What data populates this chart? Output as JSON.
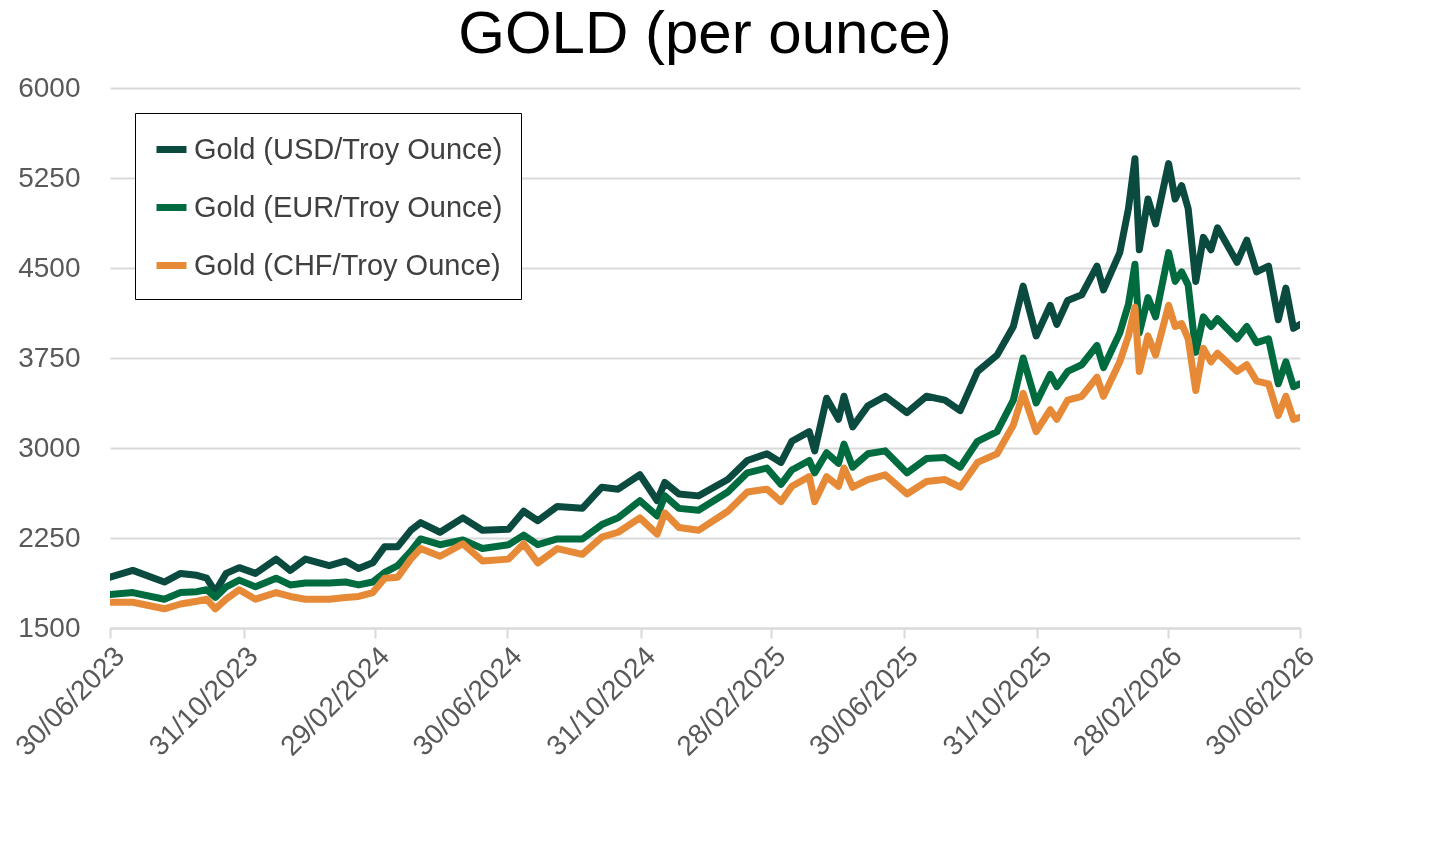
{
  "chart_data": {
    "type": "line",
    "title": "GOLD (per ounce)",
    "x": [
      "2023-06-30",
      "2023-07-21",
      "2023-08-19",
      "2023-09-03",
      "2023-09-18",
      "2023-09-27",
      "2023-10-05",
      "2023-10-15",
      "2023-10-27",
      "2023-11-11",
      "2023-11-30",
      "2023-12-13",
      "2023-12-27",
      "2024-01-18",
      "2024-02-02",
      "2024-02-14",
      "2024-02-27",
      "2024-03-09",
      "2024-03-21",
      "2024-04-02",
      "2024-04-11",
      "2024-04-29",
      "2024-05-20",
      "2024-06-07",
      "2024-07-01",
      "2024-07-15",
      "2024-07-28",
      "2024-08-15",
      "2024-09-07",
      "2024-09-25",
      "2024-10-10",
      "2024-10-30",
      "2024-11-15",
      "2024-11-22",
      "2024-12-05",
      "2024-12-23",
      "2025-01-19",
      "2025-02-06",
      "2025-02-24",
      "2025-03-09",
      "2025-03-19",
      "2025-04-04",
      "2025-04-09",
      "2025-04-20",
      "2025-05-01",
      "2025-05-06",
      "2025-05-14",
      "2025-05-28",
      "2025-06-13",
      "2025-07-03",
      "2025-07-21",
      "2025-08-07",
      "2025-08-21",
      "2025-09-06",
      "2025-09-24",
      "2025-10-09",
      "2025-10-18",
      "2025-10-30",
      "2025-11-12",
      "2025-11-18",
      "2025-11-28",
      "2025-12-11",
      "2025-12-25",
      "2025-12-31",
      "2026-01-15",
      "2026-01-23",
      "2026-01-29",
      "2026-02-02",
      "2026-02-10",
      "2026-02-17",
      "2026-03-01",
      "2026-03-07",
      "2026-03-13",
      "2026-03-19",
      "2026-03-26",
      "2026-04-02",
      "2026-04-09",
      "2026-04-15",
      "2026-05-03",
      "2026-05-12",
      "2026-05-21",
      "2026-06-01",
      "2026-06-10",
      "2026-06-17",
      "2026-06-24",
      "2026-06-30"
    ],
    "series": [
      {
        "name": "Gold (USD/Troy Ounce)",
        "color": "#0b4a3f",
        "values": [
          1923,
          1980,
          1883,
          1955,
          1939,
          1915,
          1803,
          1955,
          2003,
          1955,
          2074,
          1979,
          2074,
          2019,
          2059,
          1995,
          2043,
          2178,
          2178,
          2314,
          2378,
          2298,
          2418,
          2314,
          2322,
          2473,
          2394,
          2513,
          2497,
          2673,
          2657,
          2777,
          2561,
          2713,
          2617,
          2601,
          2737,
          2896,
          2952,
          2880,
          3056,
          3136,
          2976,
          3415,
          3239,
          3431,
          3176,
          3351,
          3431,
          3295,
          3431,
          3399,
          3311,
          3638,
          3774,
          4013,
          4349,
          3934,
          4189,
          4030,
          4229,
          4277,
          4516,
          4317,
          4628,
          4995,
          5410,
          4652,
          5075,
          4867,
          5370,
          5075,
          5187,
          4995,
          4388,
          4755,
          4652,
          4835,
          4548,
          4732,
          4468,
          4516,
          4069,
          4333,
          3998,
          4030
        ]
      },
      {
        "name": "Gold (EUR/Troy Ounce)",
        "color": "#006b3f",
        "values": [
          1780,
          1795,
          1740,
          1795,
          1803,
          1819,
          1755,
          1843,
          1899,
          1843,
          1915,
          1859,
          1875,
          1875,
          1883,
          1859,
          1883,
          1963,
          2019,
          2138,
          2242,
          2194,
          2234,
          2162,
          2194,
          2274,
          2194,
          2242,
          2242,
          2362,
          2418,
          2561,
          2434,
          2601,
          2497,
          2481,
          2633,
          2793,
          2833,
          2697,
          2817,
          2896,
          2793,
          2960,
          2872,
          3032,
          2840,
          2952,
          2976,
          2793,
          2912,
          2920,
          2840,
          3056,
          3136,
          3399,
          3750,
          3375,
          3614,
          3511,
          3638,
          3694,
          3854,
          3670,
          3958,
          4197,
          4532,
          3958,
          4253,
          4093,
          4628,
          4389,
          4468,
          4357,
          3798,
          4093,
          4013,
          4077,
          3910,
          4013,
          3878,
          3910,
          3535,
          3718,
          3511,
          3535
        ]
      },
      {
        "name": "Gold (CHF/Troy Ounce)",
        "color": "#e68a37",
        "values": [
          1715,
          1715,
          1660,
          1700,
          1723,
          1740,
          1660,
          1740,
          1819,
          1740,
          1795,
          1763,
          1740,
          1740,
          1755,
          1763,
          1795,
          1915,
          1923,
          2074,
          2162,
          2098,
          2202,
          2059,
          2074,
          2202,
          2043,
          2162,
          2114,
          2258,
          2298,
          2418,
          2282,
          2458,
          2338,
          2314,
          2473,
          2633,
          2657,
          2553,
          2681,
          2761,
          2553,
          2761,
          2681,
          2833,
          2673,
          2737,
          2777,
          2617,
          2721,
          2737,
          2673,
          2880,
          2952,
          3192,
          3455,
          3136,
          3319,
          3239,
          3399,
          3431,
          3590,
          3431,
          3718,
          3934,
          4173,
          3638,
          3934,
          3774,
          4189,
          4013,
          4037,
          3910,
          3479,
          3830,
          3718,
          3790,
          3638,
          3694,
          3558,
          3535,
          3271,
          3431,
          3239,
          3255
        ]
      }
    ],
    "xlim": [
      "2023-06-30",
      "2026-06-30"
    ],
    "xticks": [
      {
        "value": "2023-06-30",
        "label": "30/06/2023"
      },
      {
        "value": "2023-10-31",
        "label": "31/10/2023"
      },
      {
        "value": "2024-02-29",
        "label": "29/02/2024"
      },
      {
        "value": "2024-06-30",
        "label": "30/06/2024"
      },
      {
        "value": "2024-10-31",
        "label": "31/10/2024"
      },
      {
        "value": "2025-02-28",
        "label": "28/02/2025"
      },
      {
        "value": "2025-06-30",
        "label": "30/06/2025"
      },
      {
        "value": "2025-10-31",
        "label": "31/10/2025"
      },
      {
        "value": "2026-02-28",
        "label": "28/02/2026"
      },
      {
        "value": "2026-06-30",
        "label": "30/06/2026"
      }
    ],
    "ylim": [
      1500,
      6000
    ],
    "yticks": [
      1500,
      2250,
      3000,
      3750,
      4500,
      5250,
      6000
    ],
    "grid": "y",
    "legend": "top left",
    "line_style": "solid"
  }
}
